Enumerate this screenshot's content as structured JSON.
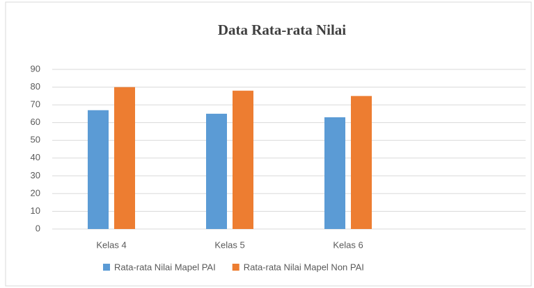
{
  "chart_data": {
    "type": "bar",
    "title": "Data Rata-rata Nilai",
    "categories": [
      "Kelas 4",
      "Kelas 5",
      "Kelas 6",
      null
    ],
    "series": [
      {
        "name": "Rata-rata Nilai Mapel PAI",
        "color": "#5b9bd5",
        "values": [
          67,
          65,
          63,
          null
        ]
      },
      {
        "name": "Rata-rata Nilai Mapel Non PAI",
        "color": "#ed7d31",
        "values": [
          80,
          78,
          75,
          null
        ]
      }
    ],
    "ylim": [
      0,
      90
    ],
    "yticks": [
      0,
      10,
      20,
      30,
      40,
      50,
      60,
      70,
      80,
      90
    ],
    "grid": true,
    "legend": "bottom"
  }
}
